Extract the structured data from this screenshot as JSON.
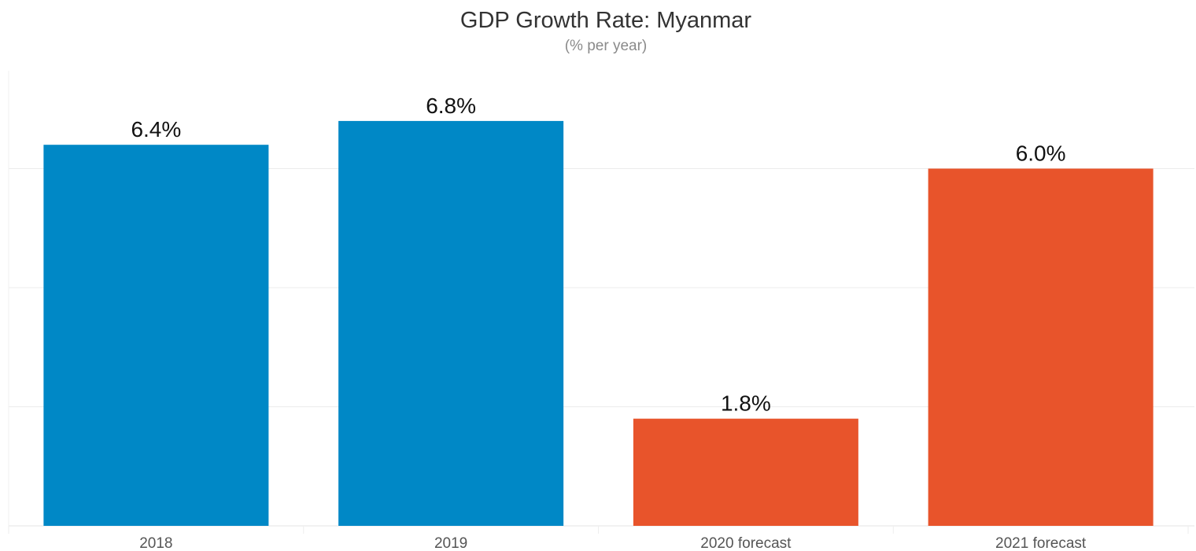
{
  "chart_data": {
    "type": "bar",
    "title": "GDP Growth Rate: Myanmar",
    "subtitle": "(% per year)",
    "categories": [
      "2018",
      "2019",
      "2020 forecast",
      "2021 forecast"
    ],
    "values": [
      6.4,
      6.8,
      1.8,
      6.0
    ],
    "value_labels": [
      "6.4%",
      "6.8%",
      "1.8%",
      "6.0%"
    ],
    "bar_colors": [
      "#0088c6",
      "#0088c6",
      "#e8542b",
      "#e8542b"
    ],
    "xlabel": "",
    "ylabel": "",
    "ylim": [
      0,
      8
    ],
    "grid": true,
    "gridlines": [
      2,
      4,
      6
    ],
    "legend": "none"
  }
}
